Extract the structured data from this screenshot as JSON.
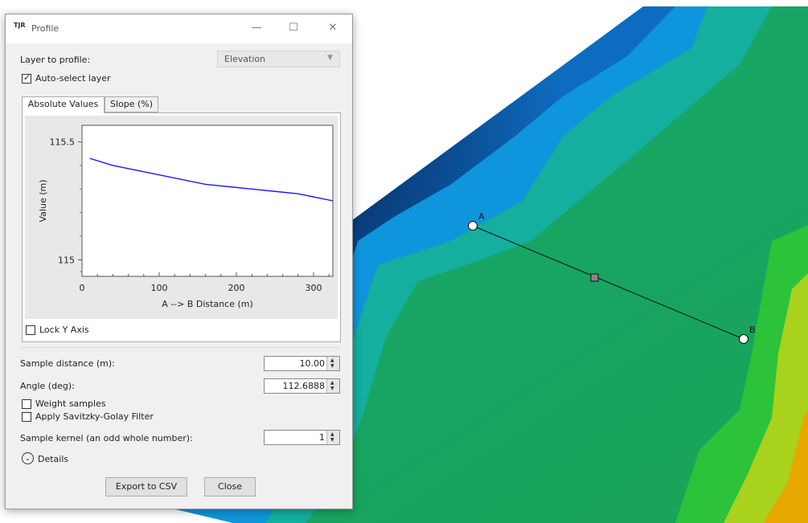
{
  "window": {
    "title": "Profile",
    "icon": "app-logo-icon",
    "icon_text": "TJR",
    "controls": {
      "minimize": "—",
      "maximize": "☐",
      "close": "✕"
    }
  },
  "layer": {
    "label": "Layer to profile:",
    "value": "Elevation"
  },
  "auto_select": {
    "label": "Auto-select layer",
    "checked": true
  },
  "tabs": [
    {
      "label": "Absolute Values",
      "active": true
    },
    {
      "label": "Slope (%)",
      "active": false
    }
  ],
  "chart_data": {
    "type": "line",
    "xlabel": "A --> B Distance (m)",
    "ylabel": "Value (m)",
    "xlim": [
      0,
      325
    ],
    "ylim": [
      114.93,
      115.57
    ],
    "x_ticks": [
      0,
      100,
      200,
      300
    ],
    "y_ticks": [
      115,
      115.5
    ],
    "y_tick_labels": [
      "115",
      "115.5"
    ],
    "series": [
      {
        "color": "#1a1aff",
        "x": [
          10,
          40,
          70,
          100,
          130,
          160,
          190,
          220,
          250,
          280,
          310,
          325
        ],
        "y": [
          115.43,
          115.4,
          115.38,
          115.36,
          115.34,
          115.32,
          115.31,
          115.3,
          115.29,
          115.28,
          115.26,
          115.25
        ]
      }
    ]
  },
  "lock_y": {
    "label": "Lock Y Axis",
    "checked": false
  },
  "sample_distance": {
    "label": "Sample distance (m):",
    "value": "10.00"
  },
  "angle": {
    "label": "Angle (deg):",
    "value": "112.6888"
  },
  "weight_samples": {
    "label": "Weight samples",
    "checked": false
  },
  "savitzky": {
    "label": "Apply Savitzky-Golay Filter",
    "checked": false
  },
  "kernel": {
    "label": "Sample kernel (an odd whole number):",
    "value": "1"
  },
  "details": {
    "label": "Details"
  },
  "buttons": {
    "export": "Export to CSV",
    "close": "Close"
  },
  "map": {
    "point_a": "A",
    "point_b": "B",
    "colors": {
      "deep": "#0a2d5e",
      "blue": "#0f8fe0",
      "teal": "#19b06e",
      "green": "#2dbc3a",
      "yellow": "#c6d61a",
      "orange": "#f0a000"
    }
  }
}
